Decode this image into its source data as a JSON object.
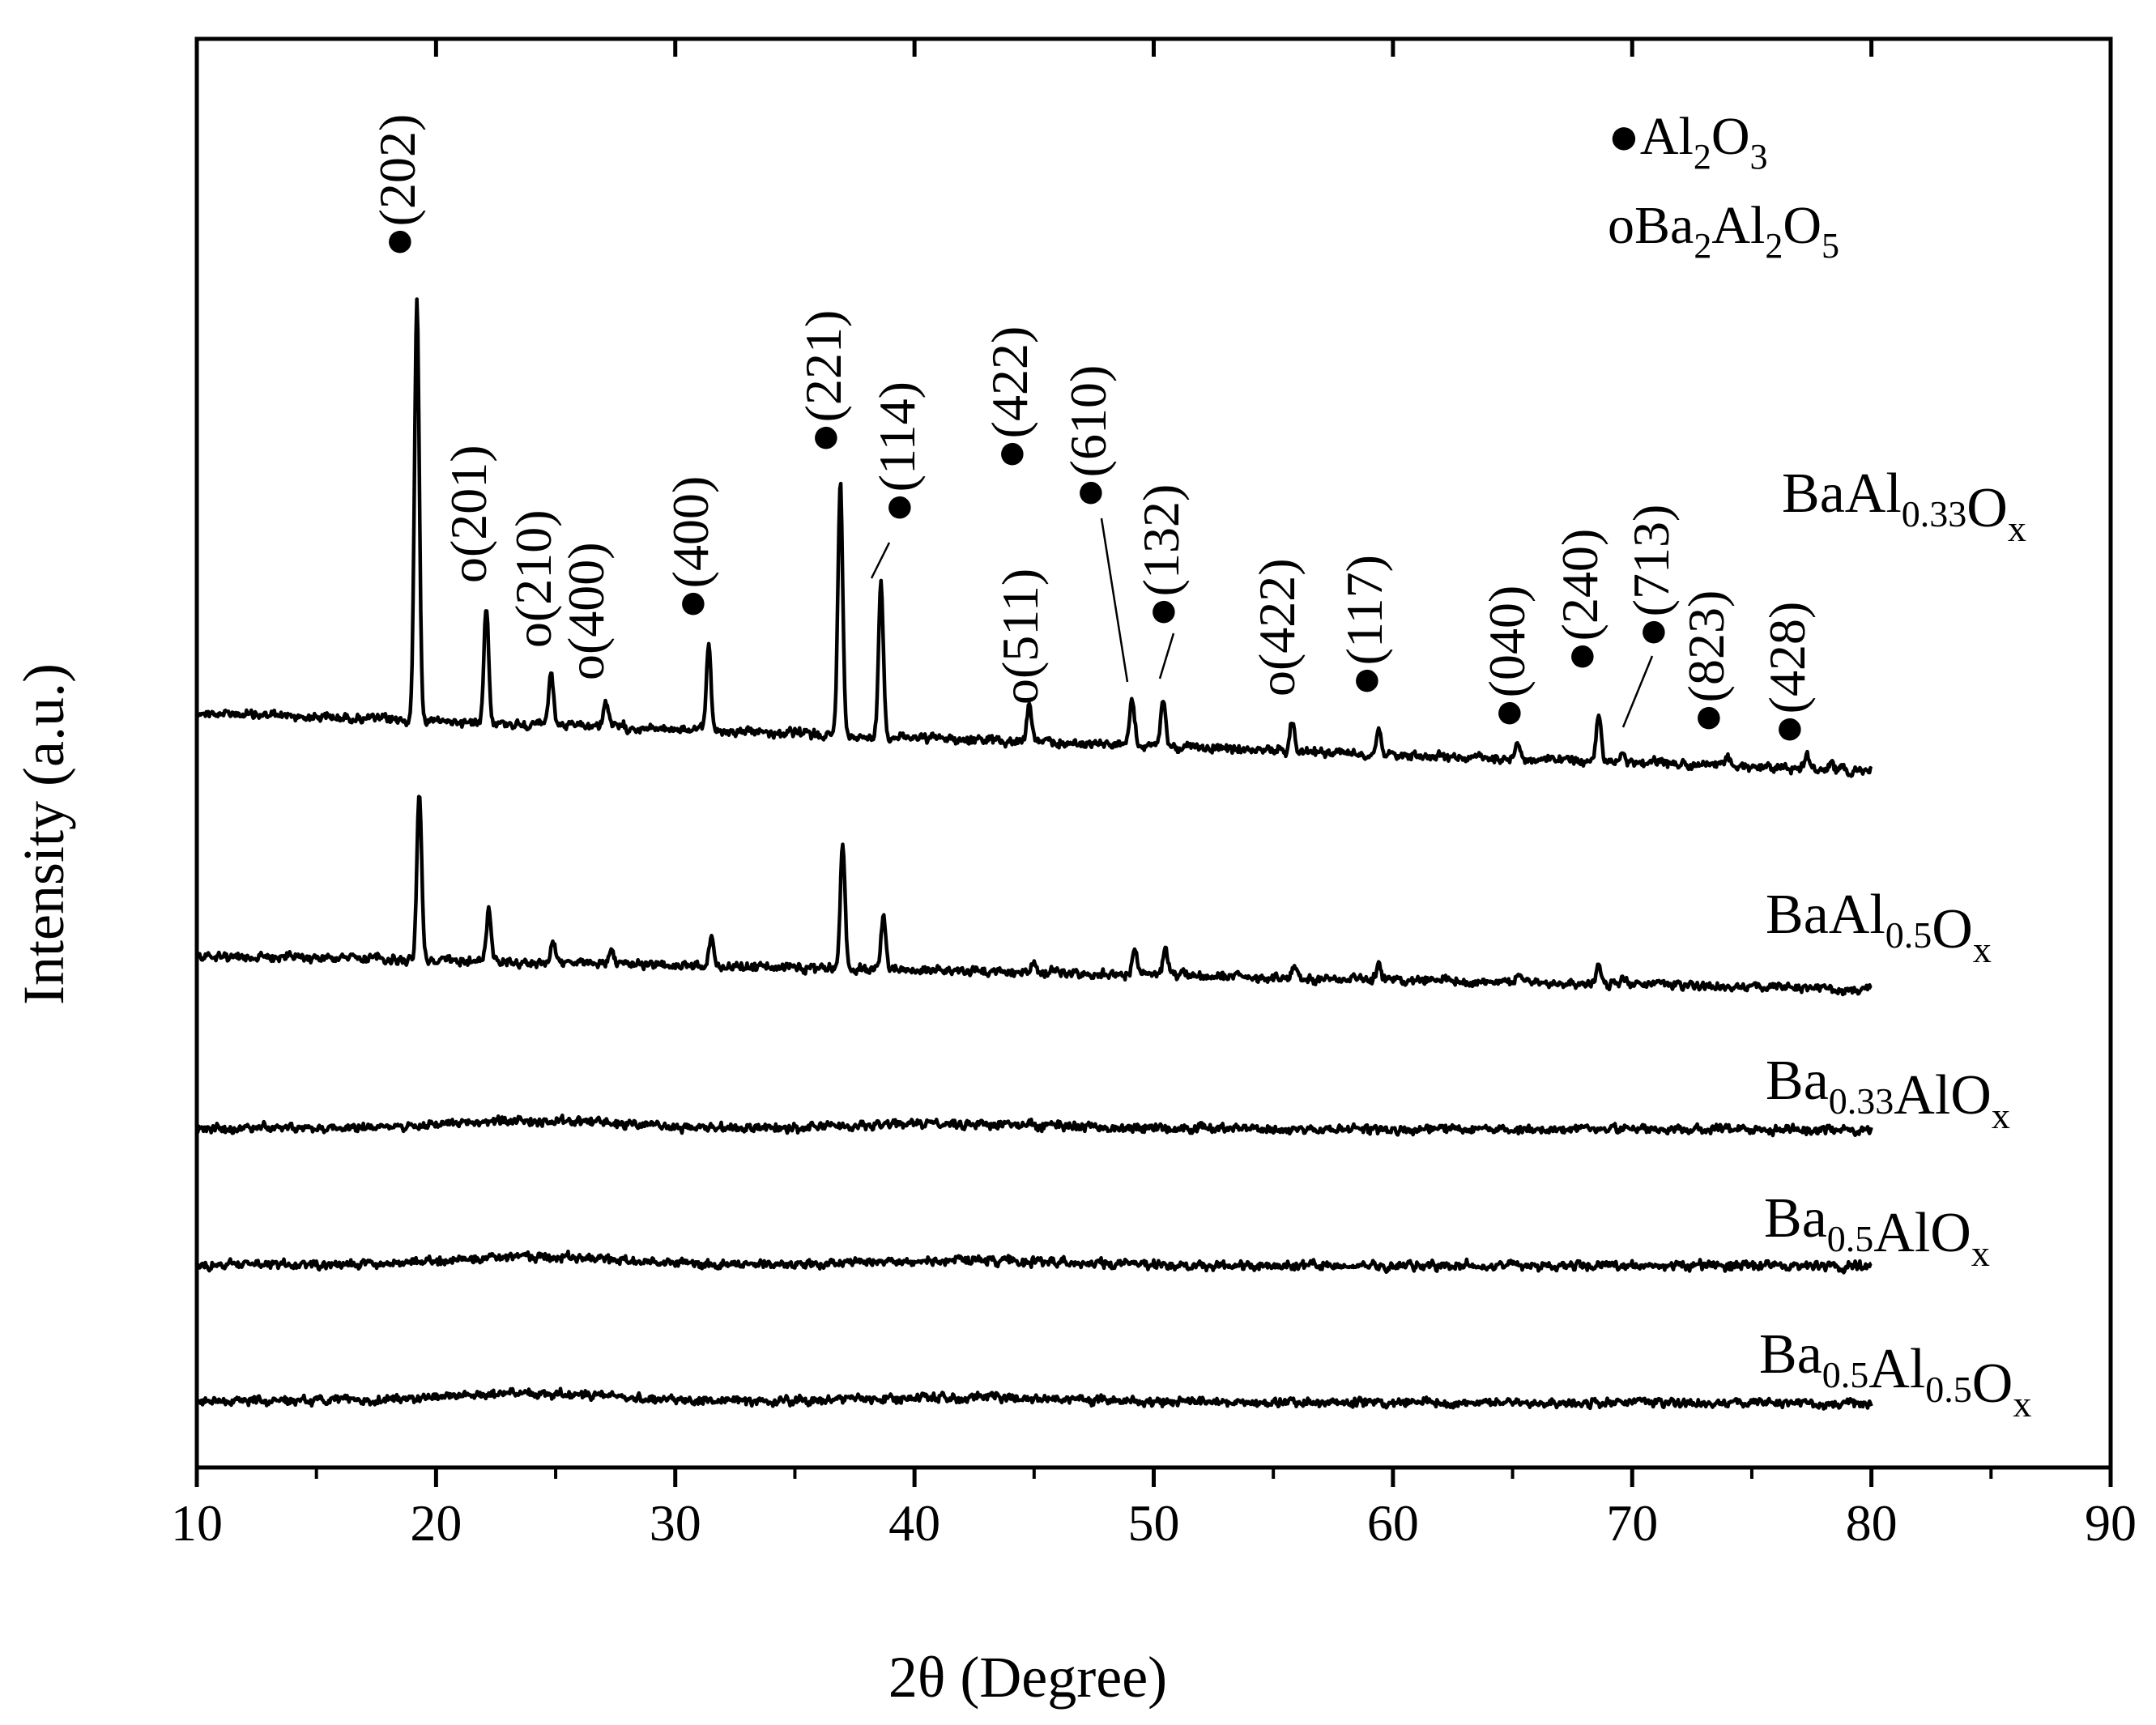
{
  "chart_data": {
    "type": "line",
    "xlabel": "2θ (Degree)",
    "ylabel": "Intensity (a.u.)",
    "xlim": [
      10,
      90
    ],
    "xticks": [
      10,
      20,
      30,
      40,
      50,
      60,
      70,
      80,
      90
    ],
    "x_range_data": [
      10,
      80
    ],
    "grid": false,
    "y_ticks_shown": false,
    "legend": {
      "placement": "top-right",
      "entries": [
        {
          "marker": "●",
          "base": "Al",
          "sub1": "2",
          "base2": "O",
          "sub2": "3"
        },
        {
          "marker": "o",
          "base": "Ba",
          "sub1": "2",
          "base2": "Al",
          "sub2": "2",
          "base3": "O",
          "sub3": "5"
        }
      ]
    },
    "series": [
      {
        "name": "BaAl0.33Ox",
        "label_parts": [
          [
            "Ba",
            ""
          ],
          [
            "Al",
            "0.33"
          ],
          [
            "O",
            "x"
          ]
        ],
        "peaks": [
          {
            "x": 19.2,
            "h": 1.0,
            "w": 0.14
          },
          {
            "x": 22.1,
            "h": 0.28,
            "w": 0.14
          },
          {
            "x": 24.8,
            "h": 0.12,
            "w": 0.14
          },
          {
            "x": 27.1,
            "h": 0.06,
            "w": 0.16
          },
          {
            "x": 31.4,
            "h": 0.2,
            "w": 0.14
          },
          {
            "x": 36.9,
            "h": 0.6,
            "w": 0.14
          },
          {
            "x": 38.6,
            "h": 0.36,
            "w": 0.14
          },
          {
            "x": 44.8,
            "h": 0.09,
            "w": 0.14
          },
          {
            "x": 49.1,
            "h": 0.11,
            "w": 0.14
          },
          {
            "x": 50.4,
            "h": 0.11,
            "w": 0.14
          },
          {
            "x": 55.8,
            "h": 0.07,
            "w": 0.14
          },
          {
            "x": 59.4,
            "h": 0.06,
            "w": 0.14
          },
          {
            "x": 65.2,
            "h": 0.04,
            "w": 0.14
          },
          {
            "x": 68.6,
            "h": 0.11,
            "w": 0.14
          },
          {
            "x": 69.6,
            "h": 0.03,
            "w": 0.14
          },
          {
            "x": 74.0,
            "h": 0.02,
            "w": 0.14
          },
          {
            "x": 77.3,
            "h": 0.03,
            "w": 0.14
          },
          {
            "x": 78.3,
            "h": 0.02,
            "w": 0.14
          }
        ],
        "annotations": [
          {
            "text": "●(202)",
            "x": 19.2,
            "overbar": [
              2,
              3
            ]
          },
          {
            "text": "o(201)",
            "x": 22.1,
            "overbar": null
          },
          {
            "text": "o(210)",
            "x": 24.8,
            "overbar": null
          },
          {
            "text": "o(400)",
            "x": 27.1,
            "overbar": null
          },
          {
            "text": "●(400)",
            "x": 31.4,
            "overbar": null
          },
          {
            "text": "●(221)",
            "x": 36.9,
            "overbar": null
          },
          {
            "text": "●(114)",
            "x": 40.2,
            "overbar": null
          },
          {
            "text": "o(511)",
            "x": 44.6,
            "overbar": null
          },
          {
            "text": "●(422)",
            "x": 44.8,
            "overbar": [
              2,
              3
            ]
          },
          {
            "text": "●(610)",
            "x": 48.0,
            "overbar": null
          },
          {
            "text": "●(132)",
            "x": 51.0,
            "overbar": [
              2,
              3
            ]
          },
          {
            "text": "o(422)",
            "x": 55.8,
            "overbar": null
          },
          {
            "text": "●(117)",
            "x": 59.5,
            "overbar": [
              2,
              3
            ]
          },
          {
            "text": "●(040)",
            "x": 65.2,
            "overbar": null
          },
          {
            "text": "●(240)",
            "x": 68.6,
            "overbar": null
          },
          {
            "text": "●(713)",
            "x": 71.4,
            "overbar": null
          },
          {
            "text": "●(823)",
            "x": 73.9,
            "overbar": [
              2,
              3
            ]
          },
          {
            "text": "●(428)",
            "x": 77.2,
            "overbar": [
              2,
              3
            ]
          }
        ]
      },
      {
        "name": "BaAl0.5Ox",
        "label_parts": [
          [
            "Ba",
            ""
          ],
          [
            "Al",
            "0.5"
          ],
          [
            "O",
            "x"
          ]
        ],
        "peaks": [
          {
            "x": 19.3,
            "h": 0.4,
            "w": 0.14
          },
          {
            "x": 22.2,
            "h": 0.12,
            "w": 0.14
          },
          {
            "x": 24.9,
            "h": 0.05,
            "w": 0.14
          },
          {
            "x": 27.3,
            "h": 0.03,
            "w": 0.16
          },
          {
            "x": 31.5,
            "h": 0.07,
            "w": 0.14
          },
          {
            "x": 37.0,
            "h": 0.3,
            "w": 0.14
          },
          {
            "x": 38.7,
            "h": 0.13,
            "w": 0.14
          },
          {
            "x": 45.0,
            "h": 0.03,
            "w": 0.14
          },
          {
            "x": 49.2,
            "h": 0.06,
            "w": 0.14
          },
          {
            "x": 50.5,
            "h": 0.06,
            "w": 0.14
          },
          {
            "x": 55.9,
            "h": 0.03,
            "w": 0.14
          },
          {
            "x": 59.4,
            "h": 0.03,
            "w": 0.14
          },
          {
            "x": 65.3,
            "h": 0.02,
            "w": 0.14
          },
          {
            "x": 68.6,
            "h": 0.05,
            "w": 0.14
          },
          {
            "x": 69.6,
            "h": 0.02,
            "w": 0.14
          }
        ],
        "annotations": []
      },
      {
        "name": "Ba0.33AlOx",
        "label_parts": [
          [
            "Ba",
            "0.33"
          ],
          [
            "Al",
            ""
          ],
          [
            "O",
            "x"
          ]
        ],
        "peaks": [],
        "annotations": []
      },
      {
        "name": "Ba0.5AlOx",
        "label_parts": [
          [
            "Ba",
            "0.5"
          ],
          [
            "Al",
            ""
          ],
          [
            "O",
            "x"
          ]
        ],
        "peaks": [],
        "annotations": []
      },
      {
        "name": "Ba0.5Al0.5Ox",
        "label_parts": [
          [
            "Ba",
            "0.5"
          ],
          [
            "Al",
            "0.5"
          ],
          [
            "O",
            "x"
          ]
        ],
        "peaks": [],
        "annotations": []
      }
    ]
  }
}
